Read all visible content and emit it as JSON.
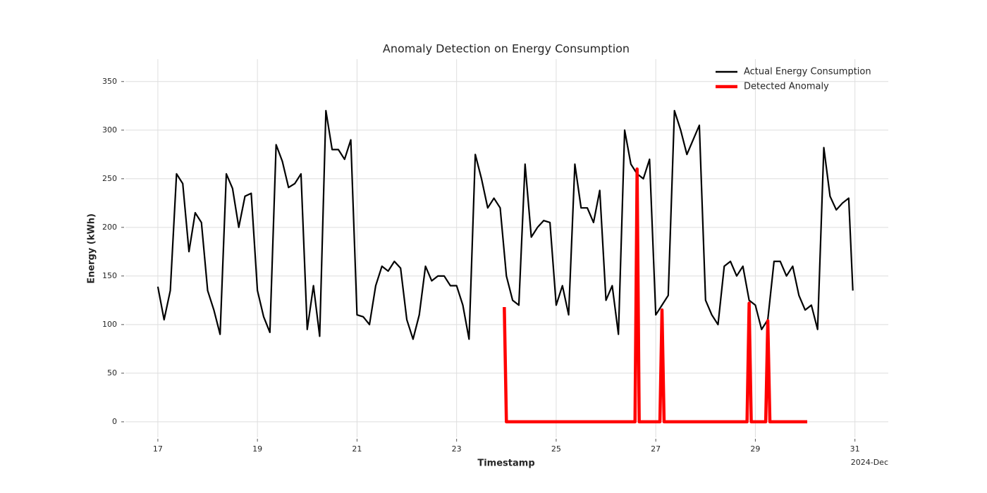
{
  "chart_data": {
    "type": "line",
    "title": "Anomaly Detection on Energy Consumption",
    "x_label": "Timestamp",
    "y_label": "Energy (kWh)",
    "x_offset_label": "2024-Dec",
    "xlim": [
      16.35,
      31.67
    ],
    "ylim": [
      -16,
      373
    ],
    "xticks": [
      17,
      19,
      21,
      23,
      25,
      27,
      29,
      31
    ],
    "yticks": [
      0,
      50,
      100,
      150,
      200,
      250,
      300,
      350
    ],
    "grid": true,
    "legend": "upper right",
    "series": [
      {
        "name": "Actual Energy Consumption",
        "color": "#000000",
        "x": [
          17,
          17.125,
          17.25,
          17.375,
          17.5,
          17.625,
          17.75,
          17.875,
          18,
          18.125,
          18.25,
          18.375,
          18.5,
          18.625,
          18.75,
          18.875,
          19,
          19.125,
          19.25,
          19.375,
          19.5,
          19.625,
          19.75,
          19.875,
          20,
          20.125,
          20.25,
          20.375,
          20.5,
          20.625,
          20.75,
          20.875,
          21,
          21.125,
          21.25,
          21.375,
          21.5,
          21.625,
          21.75,
          21.875,
          22,
          22.125,
          22.25,
          22.375,
          22.5,
          22.625,
          22.75,
          22.875,
          23,
          23.125,
          23.25,
          23.375,
          23.5,
          23.625,
          23.75,
          23.875,
          24,
          24.125,
          24.25,
          24.375,
          24.5,
          24.625,
          24.75,
          24.875,
          25,
          25.125,
          25.25,
          25.375,
          25.5,
          25.625,
          25.75,
          25.875,
          26,
          26.125,
          26.25,
          26.375,
          26.5,
          26.625,
          26.75,
          26.875,
          27,
          27.125,
          27.25,
          27.375,
          27.5,
          27.625,
          27.75,
          27.875,
          28,
          28.125,
          28.25,
          28.375,
          28.5,
          28.625,
          28.75,
          28.875,
          29,
          29.125,
          29.25,
          29.375,
          29.5,
          29.625,
          29.75,
          29.875,
          30,
          30.125,
          30.25,
          30.375,
          30.5,
          30.625,
          30.75,
          30.875,
          30.958
        ],
        "values": [
          139,
          105,
          135,
          255,
          245,
          175,
          215,
          205,
          135,
          115,
          90,
          255,
          240,
          200,
          232,
          235,
          135,
          108,
          92,
          285,
          268,
          241,
          245,
          255,
          95,
          140,
          88,
          320,
          280,
          280,
          270,
          290,
          110,
          108,
          100,
          140,
          160,
          155,
          165,
          158,
          105,
          85,
          110,
          160,
          145,
          150,
          150,
          140,
          140,
          120,
          85,
          275,
          250,
          220,
          230,
          220,
          150,
          125,
          120,
          265,
          190,
          200,
          207,
          205,
          120,
          140,
          110,
          265,
          220,
          220,
          205,
          238,
          125,
          140,
          90,
          300,
          265,
          255,
          250,
          270,
          110,
          120,
          130,
          320,
          300,
          275,
          290,
          305,
          125,
          110,
          100,
          160,
          165,
          150,
          160,
          125,
          120,
          95,
          105,
          165,
          165,
          150,
          160,
          130,
          115,
          120,
          95,
          282,
          232,
          218,
          225,
          230,
          135
        ]
      },
      {
        "name": "Detected Anomaly",
        "color": "#ff0000",
        "x": [
          23.958,
          24,
          26.583,
          26.625,
          26.667,
          27.083,
          27.125,
          27.167,
          28.833,
          28.875,
          28.917,
          29.208,
          29.25,
          29.292,
          30.042
        ],
        "values": [
          118,
          0,
          0,
          260,
          0,
          0,
          115,
          0,
          0,
          122,
          0,
          0,
          104,
          0,
          0
        ]
      }
    ]
  }
}
